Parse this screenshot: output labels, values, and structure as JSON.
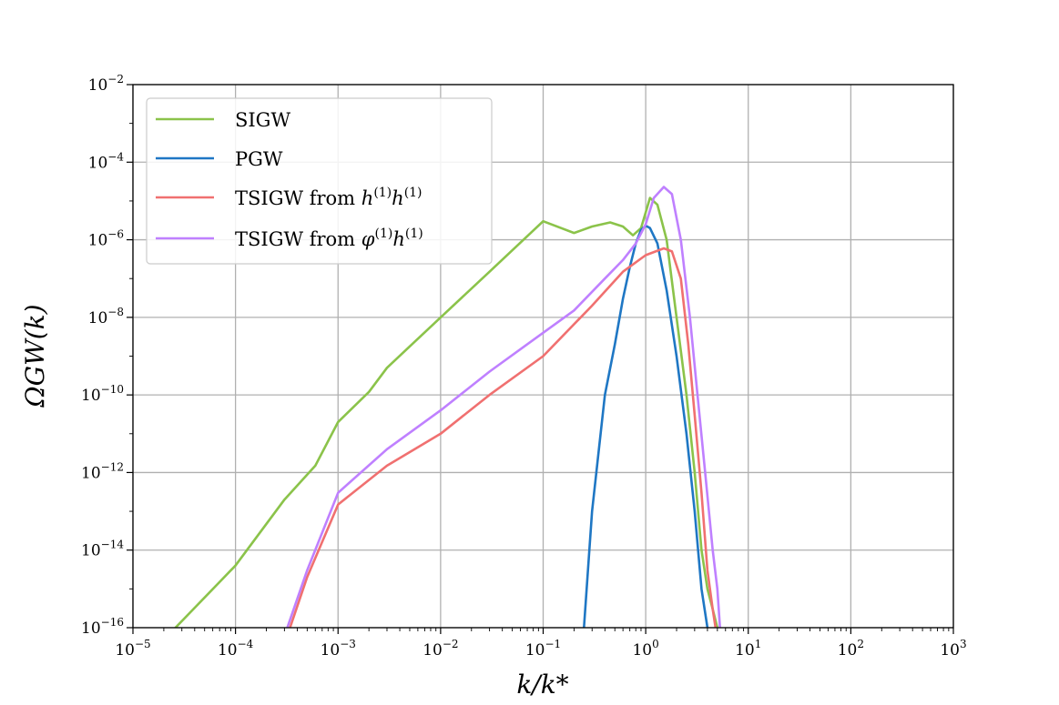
{
  "chart_data": {
    "type": "line",
    "xscale": "log",
    "yscale": "log",
    "xlim": [
      1e-05,
      1000.0
    ],
    "ylim": [
      1e-16,
      0.01
    ],
    "grid": true,
    "legend_position": "top-left",
    "xlabel": "k/k*",
    "ylabel": "ΩGW(k)",
    "x_ticks": [
      {
        "base": "10",
        "exp": "−5",
        "value": 1e-05
      },
      {
        "base": "10",
        "exp": "−4",
        "value": 0.0001
      },
      {
        "base": "10",
        "exp": "−3",
        "value": 0.001
      },
      {
        "base": "10",
        "exp": "−2",
        "value": 0.01
      },
      {
        "base": "10",
        "exp": "−1",
        "value": 0.1
      },
      {
        "base": "10",
        "exp": "0",
        "value": 1
      },
      {
        "base": "10",
        "exp": "1",
        "value": 10
      },
      {
        "base": "10",
        "exp": "2",
        "value": 100
      },
      {
        "base": "10",
        "exp": "3",
        "value": 1000
      }
    ],
    "y_ticks": [
      {
        "base": "10",
        "exp": "−16",
        "value": 1e-16
      },
      {
        "base": "10",
        "exp": "−14",
        "value": 1e-14
      },
      {
        "base": "10",
        "exp": "−12",
        "value": 1e-12
      },
      {
        "base": "10",
        "exp": "−10",
        "value": 1e-10
      },
      {
        "base": "10",
        "exp": "−8",
        "value": 1e-08
      },
      {
        "base": "10",
        "exp": "−6",
        "value": 1e-06
      },
      {
        "base": "10",
        "exp": "−4",
        "value": 0.0001
      },
      {
        "base": "10",
        "exp": "−2",
        "value": 0.01
      }
    ],
    "series": [
      {
        "name": "SIGW",
        "color": "#8bc34a",
        "x": [
          2.6e-05,
          0.0001,
          0.0003,
          0.0006,
          0.001,
          0.002,
          0.003,
          0.01,
          0.03,
          0.1,
          0.2,
          0.3,
          0.45,
          0.6,
          0.75,
          0.9,
          1.1,
          1.3,
          1.6,
          2,
          2.5,
          3,
          3.5,
          4,
          4.5,
          5
        ],
        "y": [
          1e-16,
          4e-15,
          2e-13,
          1.5e-12,
          2e-11,
          1.2e-10,
          5e-10,
          1e-08,
          1.5e-07,
          3e-06,
          1.5e-06,
          2.2e-06,
          2.8e-06,
          2.2e-06,
          1.3e-06,
          2e-06,
          1.2e-05,
          8e-06,
          1e-06,
          1e-08,
          1e-10,
          1e-12,
          1e-14,
          1e-15,
          3e-16,
          1e-16
        ]
      },
      {
        "name": "PGW",
        "color": "#1f77c4",
        "x": [
          0.25,
          0.3,
          0.4,
          0.5,
          0.6,
          0.7,
          0.8,
          0.9,
          1.0,
          1.1,
          1.3,
          1.6,
          2.0,
          2.5,
          3.0,
          3.5,
          4.0
        ],
        "y": [
          1e-16,
          1e-13,
          1e-10,
          2e-09,
          3e-08,
          2e-07,
          8e-07,
          1.8e-06,
          2.3e-06,
          2e-06,
          8e-07,
          5e-08,
          1e-09,
          1e-11,
          1e-13,
          1e-15,
          1e-16
        ]
      },
      {
        "name": "TSIGW from h(1)h(1)",
        "color": "#f07070",
        "x": [
          0.00034,
          0.0005,
          0.001,
          0.003,
          0.01,
          0.03,
          0.1,
          0.3,
          0.6,
          1.0,
          1.5,
          1.8,
          2.2,
          2.6,
          3.0,
          3.5,
          4.0,
          4.5,
          4.8
        ],
        "y": [
          1e-16,
          2e-15,
          1.5e-13,
          1.5e-12,
          1e-11,
          1e-10,
          1e-09,
          2e-08,
          1.5e-07,
          4e-07,
          6e-07,
          5e-07,
          1e-07,
          2e-09,
          3e-11,
          3e-13,
          3e-15,
          3e-16,
          1e-16
        ]
      },
      {
        "name": "TSIGW from φ(1)h(1)",
        "color": "#bf80ff",
        "x": [
          0.00032,
          0.0005,
          0.001,
          0.003,
          0.01,
          0.03,
          0.1,
          0.2,
          0.4,
          0.6,
          0.8,
          1.0,
          1.2,
          1.5,
          1.8,
          2.2,
          2.7,
          3.2,
          3.8,
          4.5,
          5.0,
          5.3
        ],
        "y": [
          1e-16,
          3e-15,
          3e-13,
          4e-12,
          4e-11,
          4e-10,
          4e-09,
          1.5e-08,
          1e-07,
          3e-07,
          8e-07,
          2.5e-06,
          1.2e-05,
          2.3e-05,
          1.5e-05,
          1e-06,
          1e-08,
          1e-10,
          1e-12,
          1e-14,
          1e-15,
          1e-16
        ]
      }
    ],
    "legend": [
      {
        "prefix": "SIGW",
        "math": []
      },
      {
        "prefix": "PGW",
        "math": []
      },
      {
        "prefix": "TSIGW from ",
        "math": [
          {
            "base": "h",
            "sup": "(1)"
          },
          {
            "base": "h",
            "sup": "(1)"
          }
        ]
      },
      {
        "prefix": "TSIGW from ",
        "math": [
          {
            "base": "φ",
            "sup": "(1)"
          },
          {
            "base": "h",
            "sup": "(1)"
          }
        ]
      }
    ]
  }
}
